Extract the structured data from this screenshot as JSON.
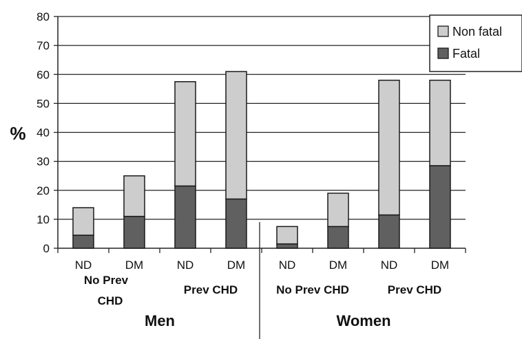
{
  "chart_data": {
    "type": "bar",
    "stacked": true,
    "ylabel": "%",
    "ylim": [
      0,
      80
    ],
    "yticks": [
      0,
      10,
      20,
      30,
      40,
      50,
      60,
      70,
      80
    ],
    "grid": true,
    "legend_position": "top-right",
    "categories": [
      "ND",
      "DM",
      "ND",
      "DM",
      "ND",
      "DM",
      "ND",
      "DM"
    ],
    "subgroups": [
      {
        "label": "No Prev CHD",
        "range": [
          0,
          1
        ]
      },
      {
        "label": "Prev CHD",
        "range": [
          2,
          3
        ]
      },
      {
        "label": "No Prev CHD",
        "range": [
          4,
          5
        ]
      },
      {
        "label": "Prev CHD",
        "range": [
          6,
          7
        ]
      }
    ],
    "groups": [
      {
        "label": "Men",
        "range": [
          0,
          3
        ]
      },
      {
        "label": "Women",
        "range": [
          4,
          7
        ]
      }
    ],
    "series": [
      {
        "name": "Fatal",
        "color": "#606060",
        "values": [
          4.5,
          11,
          21.5,
          17,
          1.5,
          7.5,
          11.5,
          28.5
        ]
      },
      {
        "name": "Non fatal",
        "color": "#cdcdcd",
        "values": [
          9.5,
          14,
          36,
          44,
          6,
          11.5,
          46.5,
          29.5
        ]
      }
    ],
    "legend": [
      "Non fatal",
      "Fatal"
    ]
  }
}
